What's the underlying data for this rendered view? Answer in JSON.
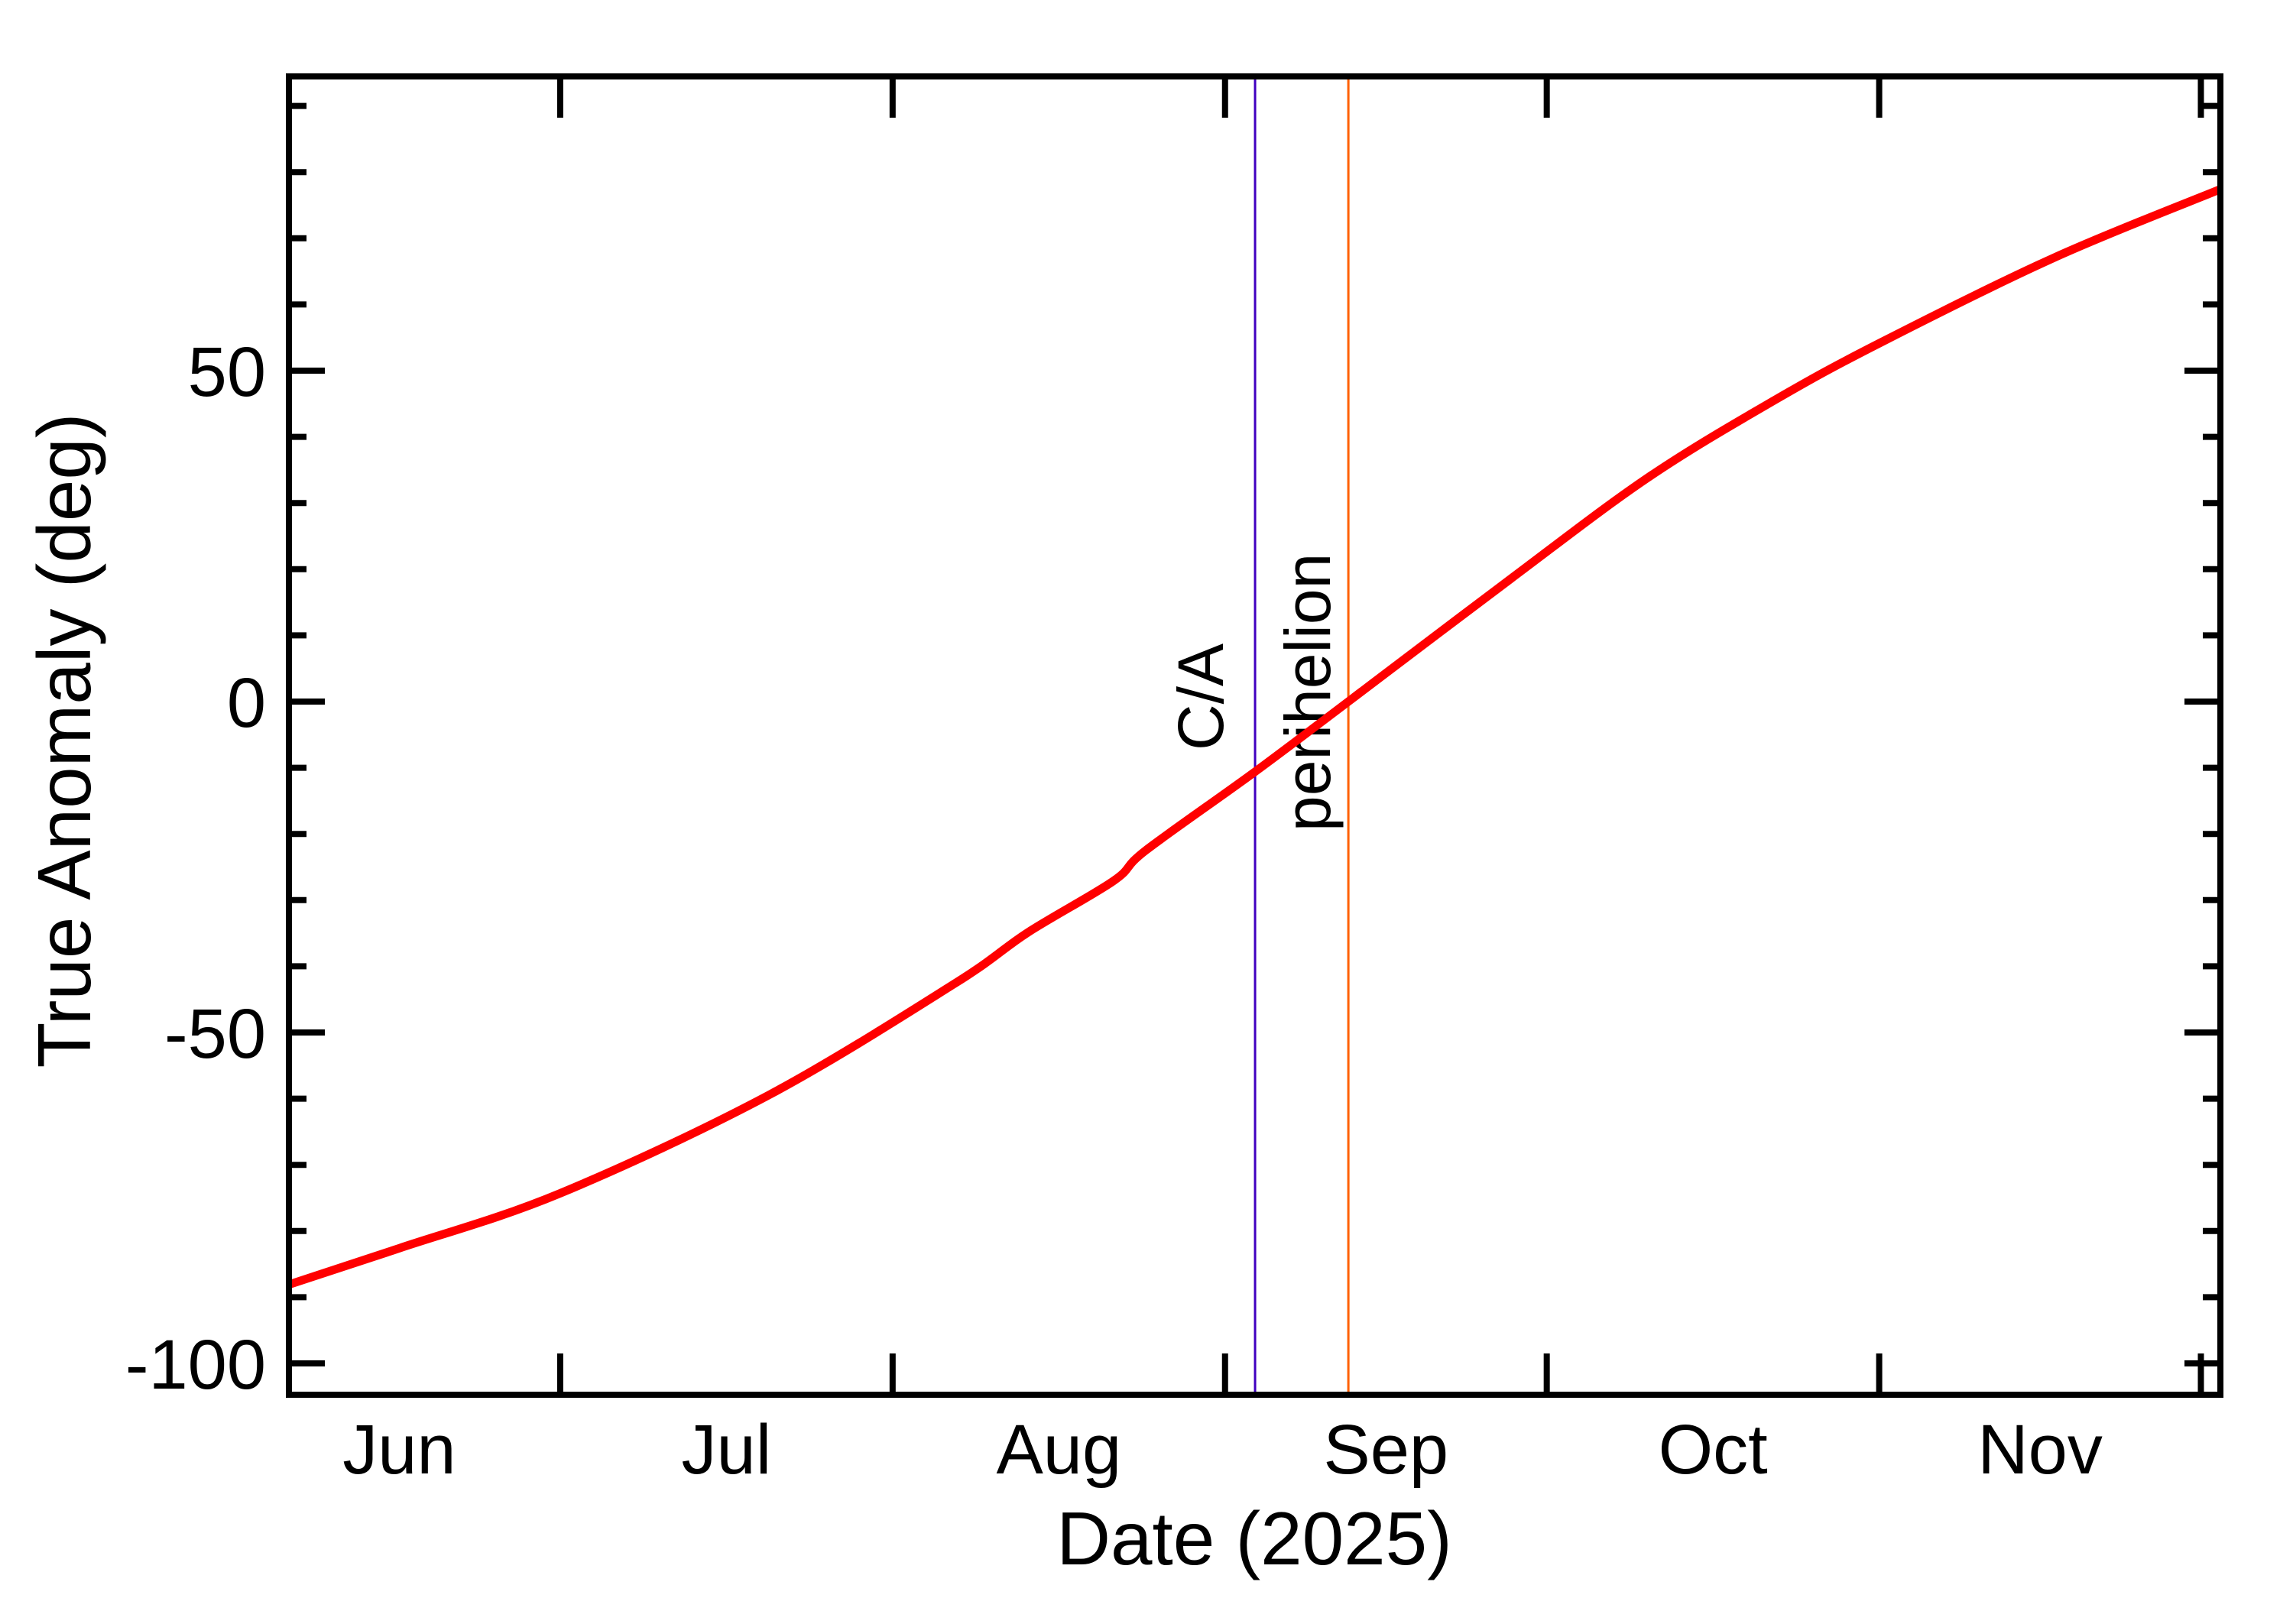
{
  "chart_data": {
    "type": "line",
    "title": "",
    "xlabel": "Date (2025)",
    "ylabel": "True Anomaly (deg)",
    "x_unit": "days since 2025-06-01",
    "xlim": [
      4.7,
      184.8
    ],
    "ylim": [
      -104.7,
      94.5
    ],
    "grid": false,
    "legend": null,
    "x_month_boundaries": [
      {
        "label": "Jul 1",
        "day": 30
      },
      {
        "label": "Aug 1",
        "day": 61
      },
      {
        "label": "Sep 1",
        "day": 92
      },
      {
        "label": "Oct 1",
        "day": 122
      },
      {
        "label": "Nov 1",
        "day": 153
      },
      {
        "label": "Dec 1",
        "day": 183
      }
    ],
    "x_tick_labels": [
      {
        "label": "Jun",
        "day": 15
      },
      {
        "label": "Jul",
        "day": 45.5
      },
      {
        "label": "Aug",
        "day": 76.5
      },
      {
        "label": "Sep",
        "day": 107
      },
      {
        "label": "Oct",
        "day": 137.5
      },
      {
        "label": "Nov",
        "day": 168
      }
    ],
    "y_major_ticks": [
      {
        "value": 50,
        "label": "50"
      },
      {
        "value": 0,
        "label": "0"
      },
      {
        "value": -50,
        "label": "-50"
      },
      {
        "value": -100,
        "label": "-100"
      }
    ],
    "y_minor_step": 10,
    "series": [
      {
        "name": "True Anomaly",
        "color": "#ff0000",
        "points": [
          {
            "date": "2025-06-05.7",
            "day": 4.7,
            "value": -88.1
          },
          {
            "date": "2025-06-16",
            "day": 15,
            "value": -82.6
          },
          {
            "date": "2025-07-01",
            "day": 30,
            "value": -74.3
          },
          {
            "date": "2025-07-20",
            "day": 49.4,
            "value": -59.5
          },
          {
            "date": "2025-08-06.8",
            "day": 66.8,
            "value": -42.6
          },
          {
            "date": "2025-08-14",
            "day": 73.6,
            "value": -34.9
          },
          {
            "date": "2025-08-21.6",
            "day": 81.6,
            "value": -27.1
          },
          {
            "date": "2025-08-24.6",
            "day": 84.6,
            "value": -22.5
          },
          {
            "date": "2025-09-03.8",
            "day": 94.8,
            "value": -10.6
          },
          {
            "date": "2025-09-12.5",
            "day": 103.5,
            "value": 0.0
          },
          {
            "date": "2025-09-27.6",
            "day": 118.6,
            "value": 18.5
          },
          {
            "date": "2025-10-10.4",
            "day": 131.4,
            "value": 33.8
          },
          {
            "date": "2025-10-22.2",
            "day": 143.2,
            "value": 45.5
          },
          {
            "date": "2025-11-01",
            "day": 153.2,
            "value": 54.3
          },
          {
            "date": "2025-11-17.5",
            "day": 169.5,
            "value": 67.2
          },
          {
            "date": "2025-12-02.8",
            "day": 184.8,
            "value": 77.4
          }
        ]
      }
    ],
    "annotations": [
      {
        "name": "ca",
        "label": "C/A",
        "day": 94.8,
        "date": "2025-09-03.8",
        "color": "#4000c0"
      },
      {
        "name": "perihelion",
        "label": "perihelion",
        "day": 103.5,
        "date": "2025-09-12.5",
        "color": "#ff6000"
      }
    ]
  },
  "axes": {
    "x_title": "Date (2025)",
    "y_title": "True Anomaly (deg)"
  },
  "markers": {
    "ca_label": "C/A",
    "perihelion_label": "perihelion"
  },
  "colors": {
    "curve": "#ff0000",
    "ca": "#4000c0",
    "perihelion": "#ff6000",
    "axis": "#000000"
  }
}
